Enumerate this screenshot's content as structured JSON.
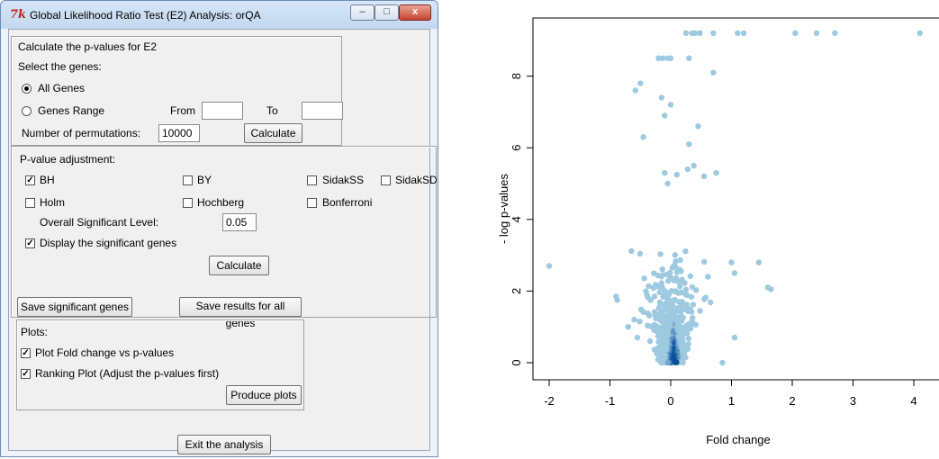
{
  "window": {
    "title": "Global Likelihood Ratio Test (E2) Analysis: orQA",
    "icon": "tk-feather-icon",
    "controls": {
      "minimize": "–",
      "maximize": "□",
      "close": "x"
    }
  },
  "pvalues": {
    "heading": "Calculate the p-values for E2",
    "select_label": "Select the genes:",
    "all_genes_label": "All Genes",
    "all_genes_selected": true,
    "range_label": "Genes Range",
    "range_selected": false,
    "from_label": "From",
    "from_value": "",
    "to_label": "To",
    "to_value": "",
    "permutations_label": "Number of permutations:",
    "permutations_value": "10000",
    "calculate_label": "Calculate"
  },
  "adjustment": {
    "heading": "P-value adjustment:",
    "methods": [
      {
        "label": "BH",
        "checked": true
      },
      {
        "label": "BY",
        "checked": false
      },
      {
        "label": "SidakSS",
        "checked": false
      },
      {
        "label": "SidakSD",
        "checked": false
      },
      {
        "label": "Holm",
        "checked": false
      },
      {
        "label": "Hochberg",
        "checked": false
      },
      {
        "label": "Bonferroni",
        "checked": false
      }
    ],
    "level_label": "Overall Significant Level:",
    "level_value": "0.05",
    "display_label": "Display the significant genes",
    "display_checked": true,
    "calculate_label": "Calculate",
    "save_significant_label": "Save significant genes",
    "save_all_label": "Save results for all genes"
  },
  "plots": {
    "heading": "Plots:",
    "fold_label": "Plot Fold change vs p-values",
    "fold_checked": true,
    "ranking_label": "Ranking Plot (Adjust the p-values first)",
    "ranking_checked": true,
    "produce_label": "Produce plots"
  },
  "exit_label": "Exit the analysis",
  "chart_data": {
    "type": "scatter",
    "title": "",
    "xlabel": "Fold change",
    "ylabel": "- log p-values",
    "xlim": [
      -2.1,
      4.2
    ],
    "ylim": [
      -0.3,
      9.5
    ],
    "xticks": [
      "-2",
      "-1",
      "0",
      "1",
      "2",
      "3",
      "4"
    ],
    "yticks": [
      "0",
      "2",
      "4",
      "6",
      "8"
    ],
    "colors": {
      "light": "#9ecae1",
      "dark": "#08519c"
    },
    "outliers": [
      [
        0.25,
        9.2
      ],
      [
        0.35,
        9.2
      ],
      [
        0.4,
        9.2
      ],
      [
        0.48,
        9.2
      ],
      [
        0.7,
        9.2
      ],
      [
        1.1,
        9.2
      ],
      [
        1.2,
        9.2
      ],
      [
        2.05,
        9.2
      ],
      [
        2.4,
        9.2
      ],
      [
        2.7,
        9.2
      ],
      [
        4.1,
        9.2
      ],
      [
        -0.2,
        8.5
      ],
      [
        -0.13,
        8.5
      ],
      [
        -0.05,
        8.5
      ],
      [
        0.0,
        8.5
      ],
      [
        0.3,
        8.5
      ],
      [
        0.7,
        8.1
      ],
      [
        -0.5,
        7.8
      ],
      [
        -0.58,
        7.6
      ],
      [
        -0.15,
        7.4
      ],
      [
        0.0,
        7.2
      ],
      [
        -0.1,
        6.9
      ],
      [
        0.45,
        6.6
      ],
      [
        -0.45,
        6.3
      ],
      [
        0.3,
        6.1
      ],
      [
        0.38,
        5.5
      ],
      [
        0.28,
        5.4
      ],
      [
        0.1,
        5.25
      ],
      [
        0.55,
        5.2
      ],
      [
        0.75,
        5.3
      ],
      [
        -0.1,
        5.3
      ],
      [
        -0.05,
        5.0
      ],
      [
        1.0,
        2.8
      ],
      [
        1.05,
        2.5
      ],
      [
        1.45,
        2.8
      ],
      [
        1.65,
        2.05
      ],
      [
        1.6,
        2.1
      ],
      [
        -2.0,
        2.7
      ],
      [
        -0.9,
        1.85
      ],
      [
        -0.88,
        1.75
      ],
      [
        -0.6,
        1.2
      ],
      [
        -0.55,
        0.7
      ],
      [
        1.05,
        0.7
      ],
      [
        0.85,
        0.0
      ],
      [
        -0.7,
        1.0
      ]
    ],
    "cluster": {
      "count": 650,
      "x_center": 0.02,
      "x_spread_near": 0.17,
      "x_spread_far": 0.28,
      "y_decay": 1.25,
      "y_max": 5.0
    }
  }
}
